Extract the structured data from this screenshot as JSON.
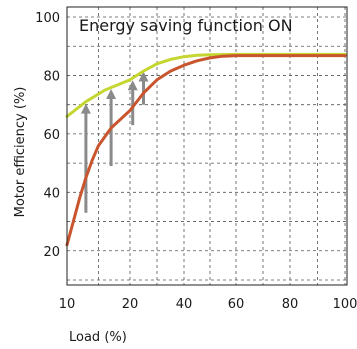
{
  "chart_data": {
    "type": "line",
    "title": "",
    "annotation": "Energy saving function ON",
    "xlabel": "Load (%)",
    "ylabel": "Motor efficiency (%)",
    "xlim": [
      10,
      100
    ],
    "ylim": [
      10,
      100
    ],
    "x_ticks": [
      10,
      20,
      40,
      60,
      80,
      100
    ],
    "x_tick_labels": [
      "10",
      "20",
      "40",
      "60",
      "80",
      "100"
    ],
    "x_gridlines": [
      10,
      15,
      20,
      30,
      40,
      50,
      60,
      70,
      80,
      90,
      100
    ],
    "y_ticks": [
      20,
      40,
      60,
      80,
      100
    ],
    "y_tick_labels": [
      "20",
      "40",
      "60",
      "80",
      "100"
    ],
    "y_gridlines": [
      10,
      20,
      30,
      40,
      50,
      60,
      70,
      80,
      90,
      100
    ],
    "grid": true,
    "series": [
      {
        "color": "#c5d630",
        "points": [
          [
            10,
            66
          ],
          [
            13,
            71
          ],
          [
            16,
            75
          ],
          [
            20,
            78.5
          ],
          [
            25,
            81.5
          ],
          [
            30,
            84
          ],
          [
            35,
            85.5
          ],
          [
            40,
            86.4
          ],
          [
            45,
            86.9
          ],
          [
            50,
            87.1
          ],
          [
            60,
            87.2
          ],
          [
            80,
            87.2
          ],
          [
            100,
            87.2
          ]
        ]
      },
      {
        "color": "#c8552e",
        "points": [
          [
            10,
            22
          ],
          [
            11,
            30
          ],
          [
            12,
            38
          ],
          [
            13,
            45
          ],
          [
            14,
            51
          ],
          [
            15,
            56
          ],
          [
            17,
            62
          ],
          [
            20,
            68
          ],
          [
            25,
            74
          ],
          [
            30,
            78.5
          ],
          [
            35,
            81.5
          ],
          [
            40,
            83.5
          ],
          [
            45,
            85
          ],
          [
            50,
            86
          ],
          [
            55,
            86.6
          ],
          [
            60,
            86.8
          ],
          [
            80,
            86.8
          ],
          [
            100,
            86.8
          ]
        ]
      }
    ],
    "arrows": [
      {
        "x": 13,
        "from": 33,
        "to": 70
      },
      {
        "x": 17,
        "from": 49,
        "to": 75
      },
      {
        "x": 21,
        "from": 63,
        "to": 78
      },
      {
        "x": 25,
        "from": 70,
        "to": 81
      }
    ],
    "arrow_color": "#8a8a8a"
  }
}
